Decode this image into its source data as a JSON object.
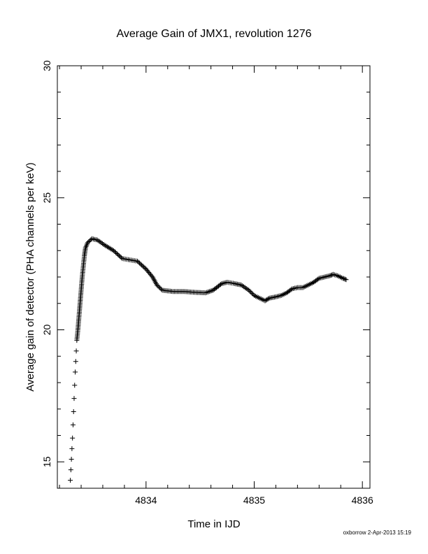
{
  "chart_data": {
    "type": "scatter",
    "title": "Average Gain of JMX1, revolution 1276",
    "xlabel": "Time in IJD",
    "ylabel": "Average gain of detector (PHA channels per keV)",
    "xlim": [
      4833.18,
      4836.07
    ],
    "ylim": [
      14.0,
      30.0
    ],
    "x_ticks": [
      "4834",
      "4835",
      "4836"
    ],
    "y_ticks": [
      "15",
      "20",
      "25",
      "30"
    ],
    "marker": "+",
    "color": "#000000",
    "grid": false,
    "series": [
      {
        "points": [
          [
            4833.3,
            14.3
          ],
          [
            4833.305,
            14.7
          ],
          [
            4833.31,
            15.1
          ],
          [
            4833.315,
            15.5
          ],
          [
            4833.32,
            15.9
          ],
          [
            4833.325,
            16.4
          ],
          [
            4833.33,
            16.9
          ],
          [
            4833.335,
            17.4
          ],
          [
            4833.34,
            17.9
          ],
          [
            4833.345,
            18.4
          ],
          [
            4833.35,
            18.8
          ],
          [
            4833.355,
            19.2
          ],
          [
            4833.36,
            19.6
          ],
          [
            4833.37,
            20.0
          ],
          [
            4833.38,
            20.5
          ],
          [
            4833.39,
            21.0
          ],
          [
            4833.4,
            21.5
          ],
          [
            4833.41,
            22.0
          ],
          [
            4833.42,
            22.4
          ],
          [
            4833.43,
            22.8
          ],
          [
            4833.44,
            23.1
          ],
          [
            4833.46,
            23.3
          ],
          [
            4833.5,
            23.45
          ],
          [
            4833.55,
            23.4
          ],
          [
            4833.62,
            23.2
          ],
          [
            4833.7,
            23.0
          ],
          [
            4833.78,
            22.7
          ],
          [
            4833.85,
            22.65
          ],
          [
            4833.92,
            22.6
          ],
          [
            4834.0,
            22.3
          ],
          [
            4834.06,
            22.0
          ],
          [
            4834.1,
            21.7
          ],
          [
            4834.15,
            21.5
          ],
          [
            4834.25,
            21.45
          ],
          [
            4834.35,
            21.45
          ],
          [
            4834.45,
            21.42
          ],
          [
            4834.55,
            21.4
          ],
          [
            4834.62,
            21.5
          ],
          [
            4834.7,
            21.75
          ],
          [
            4834.75,
            21.8
          ],
          [
            4834.82,
            21.75
          ],
          [
            4834.88,
            21.7
          ],
          [
            4834.95,
            21.5
          ],
          [
            4835.0,
            21.3
          ],
          [
            4835.05,
            21.2
          ],
          [
            4835.1,
            21.1
          ],
          [
            4835.14,
            21.2
          ],
          [
            4835.2,
            21.25
          ],
          [
            4835.25,
            21.3
          ],
          [
            4835.3,
            21.4
          ],
          [
            4835.35,
            21.55
          ],
          [
            4835.4,
            21.6
          ],
          [
            4835.45,
            21.6
          ],
          [
            4835.5,
            21.7
          ],
          [
            4835.55,
            21.8
          ],
          [
            4835.6,
            21.95
          ],
          [
            4835.65,
            22.0
          ],
          [
            4835.7,
            22.05
          ],
          [
            4835.73,
            22.1
          ],
          [
            4835.77,
            22.05
          ],
          [
            4835.82,
            21.95
          ],
          [
            4835.85,
            21.9
          ]
        ]
      }
    ]
  },
  "footer": "oxborrow  2-Apr-2013 15:19"
}
